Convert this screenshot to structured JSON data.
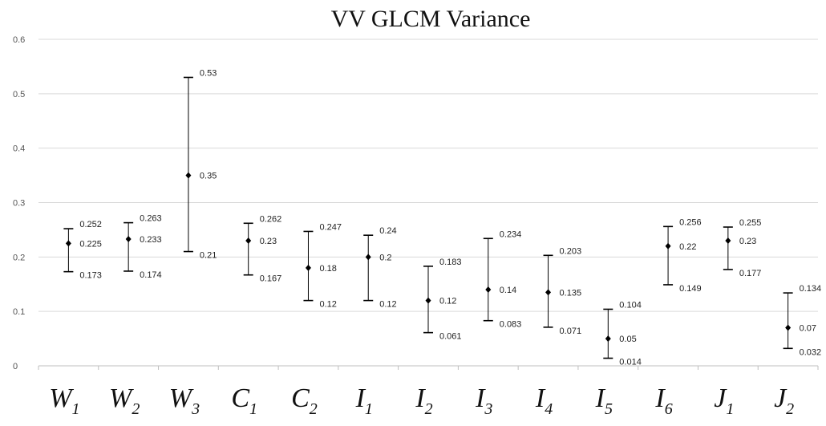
{
  "chart_data": {
    "type": "scatter",
    "title": "VV GLCM Variance",
    "xlabel": "",
    "ylabel": "",
    "ylim": [
      0,
      0.6
    ],
    "yticks": [
      "0",
      "0.1",
      "0.2",
      "0.3",
      "0.4",
      "0.5",
      "0.6"
    ],
    "grid": true,
    "categories": [
      {
        "base": "W",
        "sub": "1"
      },
      {
        "base": "W",
        "sub": "2"
      },
      {
        "base": "W",
        "sub": "3"
      },
      {
        "base": "C",
        "sub": "1"
      },
      {
        "base": "C",
        "sub": "2"
      },
      {
        "base": "I",
        "sub": "1"
      },
      {
        "base": "I",
        "sub": "2"
      },
      {
        "base": "I",
        "sub": "3"
      },
      {
        "base": "I",
        "sub": "4"
      },
      {
        "base": "I",
        "sub": "5"
      },
      {
        "base": "I",
        "sub": "6"
      },
      {
        "base": "J",
        "sub": "1"
      },
      {
        "base": "J",
        "sub": "2"
      }
    ],
    "series": [
      {
        "label": "high",
        "values": [
          0.252,
          0.263,
          0.53,
          0.262,
          0.247,
          0.24,
          0.183,
          0.234,
          0.203,
          0.104,
          0.256,
          0.255,
          0.134
        ]
      },
      {
        "label": "mean",
        "values": [
          0.225,
          0.233,
          0.35,
          0.23,
          0.18,
          0.2,
          0.12,
          0.14,
          0.135,
          0.05,
          0.22,
          0.23,
          0.07
        ]
      },
      {
        "label": "low",
        "values": [
          0.173,
          0.174,
          0.21,
          0.167,
          0.12,
          0.12,
          0.061,
          0.083,
          0.071,
          0.014,
          0.149,
          0.177,
          0.032
        ]
      }
    ],
    "value_labels": {
      "high": [
        "0.252",
        "0.263",
        "0.53",
        "0.262",
        "0.247",
        "0.24",
        "0.183",
        "0.234",
        "0.203",
        "0.104",
        "0.256",
        "0.255",
        "0.134"
      ],
      "mean": [
        "0.225",
        "0.233",
        "0.35",
        "0.23",
        "0.18",
        "0.2",
        "0.12",
        "0.14",
        "0.135",
        "0.05",
        "0.22",
        "0.23",
        "0.07"
      ],
      "low": [
        "0.173",
        "0.174",
        "0.21",
        "0.167",
        "0.12",
        "0.12",
        "0.061",
        "0.083",
        "0.071",
        "0.014",
        "0.149",
        "0.177",
        "0.032"
      ]
    },
    "colors": {
      "marks": "#000000",
      "grid": "#d9d9d9",
      "axis": "#bfbfbf"
    }
  }
}
